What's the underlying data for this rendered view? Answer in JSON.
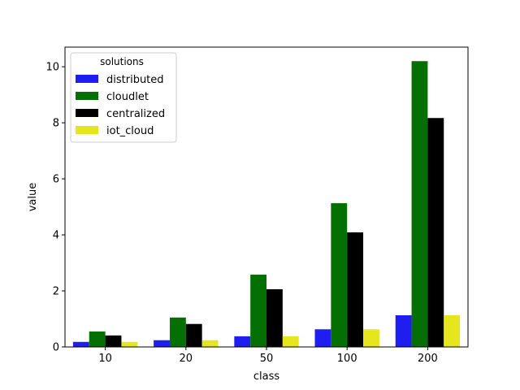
{
  "chart_data": {
    "type": "bar",
    "categories": [
      "10",
      "20",
      "50",
      "100",
      "200"
    ],
    "series": [
      {
        "name": "distributed",
        "color": "#1e1ef0",
        "values": [
          0.18,
          0.24,
          0.38,
          0.63,
          1.13
        ]
      },
      {
        "name": "cloudlet",
        "color": "#047004",
        "values": [
          0.55,
          1.05,
          2.58,
          5.13,
          10.2
        ]
      },
      {
        "name": "centralized",
        "color": "#000000",
        "values": [
          0.41,
          0.82,
          2.06,
          4.09,
          8.17
        ]
      },
      {
        "name": "iot_cloud",
        "color": "#e6e61e",
        "values": [
          0.18,
          0.24,
          0.38,
          0.63,
          1.13
        ]
      }
    ],
    "title": "",
    "xlabel": "class",
    "ylabel": "value",
    "ylim": [
      0,
      10.7
    ],
    "yticks": [
      0,
      2,
      4,
      6,
      8,
      10
    ],
    "legend": {
      "title": "solutions",
      "placement": "top-left"
    },
    "grid": false
  }
}
